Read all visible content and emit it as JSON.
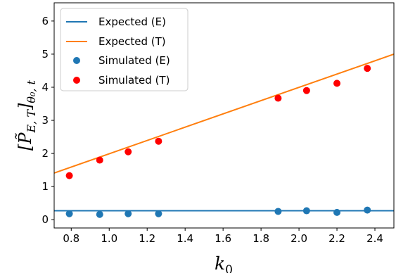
{
  "chart_data": {
    "type": "scatter",
    "xlabel": "k",
    "xlabel_subscript": "0",
    "ylabel": "[P̃",
    "ylabel_subscript": "E, T",
    "ylabel_tail": "]",
    "ylabel_sub2": "θ₀, t",
    "xlim": [
      0.71,
      2.5
    ],
    "ylim": [
      -0.25,
      6.55
    ],
    "x_ticks": [
      0.8,
      1.0,
      1.2,
      1.4,
      1.6,
      1.8,
      2.0,
      2.2,
      2.4
    ],
    "x_tick_labels": [
      "0.8",
      "1.0",
      "1.2",
      "1.4",
      "1.6",
      "1.8",
      "2.0",
      "2.2",
      "2.4"
    ],
    "y_ticks": [
      0,
      1,
      2,
      3,
      4,
      5,
      6
    ],
    "y_tick_labels": [
      "0",
      "1",
      "2",
      "3",
      "4",
      "5",
      "6"
    ],
    "grid": false,
    "legend_position": "top-left",
    "lines": [
      {
        "name": "Expected (E)",
        "color": "#1f77b4",
        "points": [
          [
            0.71,
            0.27
          ],
          [
            2.5,
            0.27
          ]
        ]
      },
      {
        "name": "Expected (T)",
        "color": "#ff7f0e",
        "points": [
          [
            0.71,
            1.41
          ],
          [
            2.5,
            5.0
          ]
        ]
      }
    ],
    "scatter": [
      {
        "name": "Simulated (E)",
        "color": "#1f77b4",
        "x": [
          0.79,
          0.95,
          1.1,
          1.26,
          1.89,
          2.04,
          2.2,
          2.36
        ],
        "y": [
          0.18,
          0.16,
          0.18,
          0.18,
          0.25,
          0.27,
          0.22,
          0.29
        ]
      },
      {
        "name": "Simulated (T)",
        "color": "#ff0000",
        "x": [
          0.79,
          0.95,
          1.1,
          1.26,
          1.89,
          2.04,
          2.2,
          2.36
        ],
        "y": [
          1.33,
          1.8,
          2.05,
          2.37,
          3.67,
          3.9,
          4.12,
          4.57
        ]
      }
    ]
  }
}
